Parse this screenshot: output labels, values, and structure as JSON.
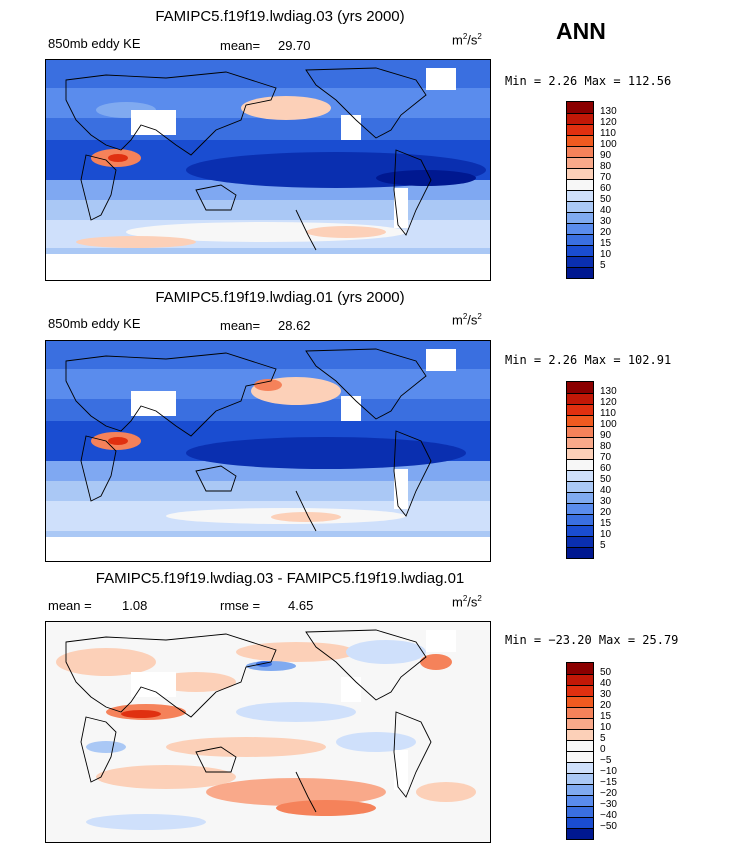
{
  "season": "ANN",
  "panels": [
    {
      "title": "FAMIPC5.f19f19.lwdiag.03 (yrs 2000)",
      "left_label": "850mb eddy KE",
      "stat1_label": "mean=",
      "stat1_value": "29.70",
      "units": "m",
      "units_sup1": "2",
      "units_mid": "/s",
      "units_sup2": "2",
      "minmax": "Min =    2.26  Max = 112.56",
      "colorbar": {
        "labels": [
          "130",
          "120",
          "110",
          "100",
          "90",
          "80",
          "70",
          "60",
          "50",
          "40",
          "30",
          "20",
          "15",
          "10",
          "5"
        ],
        "colors": [
          "#8b0000",
          "#c21807",
          "#e03010",
          "#f05a20",
          "#f5825a",
          "#f9a98a",
          "#fcd0b8",
          "#f7f7f7",
          "#cfe0fb",
          "#aac8f5",
          "#80aaf0",
          "#5a8ced",
          "#3a6fe0",
          "#1a4dd1",
          "#0a2fb0",
          "#001890"
        ]
      }
    },
    {
      "title": "FAMIPC5.f19f19.lwdiag.01 (yrs 2000)",
      "left_label": "850mb eddy KE",
      "stat1_label": "mean=",
      "stat1_value": "28.62",
      "units": "m",
      "units_sup1": "2",
      "units_mid": "/s",
      "units_sup2": "2",
      "minmax": "Min =    2.26  Max = 102.91",
      "colorbar": {
        "labels": [
          "130",
          "120",
          "110",
          "100",
          "90",
          "80",
          "70",
          "60",
          "50",
          "40",
          "30",
          "20",
          "15",
          "10",
          "5"
        ],
        "colors": [
          "#8b0000",
          "#c21807",
          "#e03010",
          "#f05a20",
          "#f5825a",
          "#f9a98a",
          "#fcd0b8",
          "#f7f7f7",
          "#cfe0fb",
          "#aac8f5",
          "#80aaf0",
          "#5a8ced",
          "#3a6fe0",
          "#1a4dd1",
          "#0a2fb0",
          "#001890"
        ]
      }
    },
    {
      "title": "FAMIPC5.f19f19.lwdiag.03 - FAMIPC5.f19f19.lwdiag.01",
      "left_label": "mean =",
      "left_value": "1.08",
      "stat1_label": "rmse =",
      "stat1_value": "4.65",
      "units": "m",
      "units_sup1": "2",
      "units_mid": "/s",
      "units_sup2": "2",
      "minmax": "Min = −23.20  Max =  25.79",
      "colorbar": {
        "labels": [
          "50",
          "40",
          "30",
          "20",
          "15",
          "10",
          "5",
          "0",
          "−5",
          "−10",
          "−15",
          "−20",
          "−30",
          "−40",
          "−50"
        ],
        "colors": [
          "#8b0000",
          "#c21807",
          "#e03010",
          "#f05a20",
          "#f5825a",
          "#f9a98a",
          "#fcd0b8",
          "#f7f7f7",
          "#f7f7f7",
          "#cfe0fb",
          "#aac8f5",
          "#80aaf0",
          "#5a8ced",
          "#3a6fe0",
          "#1a4dd1",
          "#001890"
        ]
      }
    }
  ]
}
